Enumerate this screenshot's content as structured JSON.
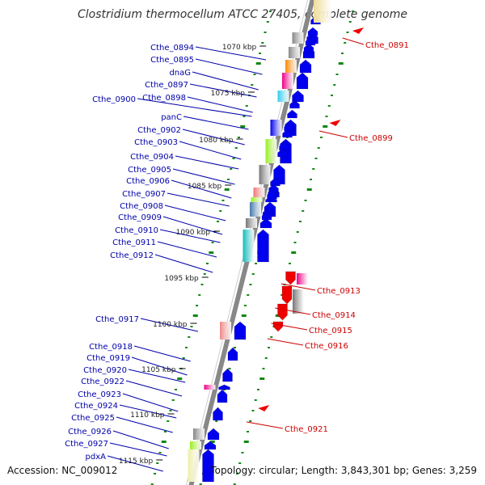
{
  "title": "Clostridium thermocellum ATCC 27405, complete genome",
  "footer": {
    "accession": "Accession: NC_009012",
    "summary": "Topology: circular; Length: 3,843,301 bp; Genes: 3,259"
  },
  "colors": {
    "forward_label": "#0000aa",
    "reverse_label": "#cc0000",
    "backbone": "#888888",
    "cds_blue": "#0000ee",
    "cds_red": "#ee0000",
    "tick_green": "#118811"
  },
  "kbp_ticks": [
    "1070 kbp",
    "1075 kbp",
    "1080 kbp",
    "1085 kbp",
    "1090 kbp",
    "1095 kbp",
    "1100 kbp",
    "1105 kbp",
    "1110 kbp",
    "1115 kbp"
  ],
  "forward_genes": [
    "Cthe_0894",
    "Cthe_0895",
    "dnaG",
    "Cthe_0897",
    "Cthe_0898",
    "Cthe_0900",
    "panC",
    "Cthe_0902",
    "Cthe_0903",
    "Cthe_0904",
    "Cthe_0905",
    "Cthe_0906",
    "Cthe_0907",
    "Cthe_0908",
    "Cthe_0909",
    "Cthe_0910",
    "Cthe_0911",
    "Cthe_0912",
    "Cthe_0917",
    "Cthe_0918",
    "Cthe_0919",
    "Cthe_0920",
    "Cthe_0922",
    "Cthe_0923",
    "Cthe_0924",
    "Cthe_0925",
    "Cthe_0926",
    "Cthe_0927",
    "pdxA"
  ],
  "reverse_genes": [
    "Cthe_0891",
    "Cthe_0899",
    "Cthe_0913",
    "Cthe_0914",
    "Cthe_0915",
    "Cthe_0916",
    "Cthe_0921"
  ]
}
